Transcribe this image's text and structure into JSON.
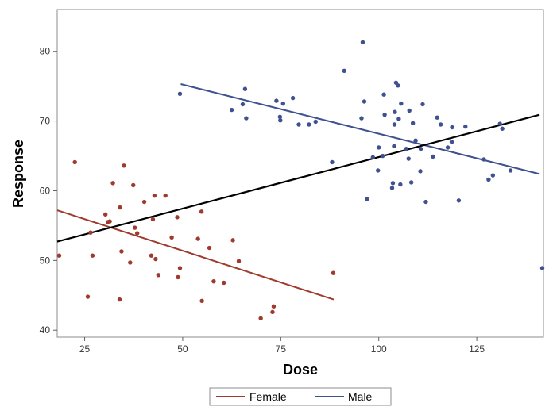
{
  "chart_data": {
    "type": "scatter",
    "xlabel": "Dose",
    "ylabel": "Response",
    "xlim": [
      18,
      142
    ],
    "ylim": [
      39,
      86
    ],
    "x_ticks": [
      25,
      50,
      75,
      100,
      125
    ],
    "y_ticks": [
      40,
      50,
      60,
      70,
      80
    ],
    "grid": false,
    "legend_position": "bottom-center",
    "overall_fit": {
      "color": "#000000",
      "x": [
        18,
        141
      ],
      "y": [
        52.7,
        70.9
      ]
    },
    "series": [
      {
        "name": "Female",
        "color": "#9e3b2e",
        "points": [
          [
            18.5,
            50.7
          ],
          [
            22.5,
            64.1
          ],
          [
            25.8,
            44.8
          ],
          [
            26.5,
            54.0
          ],
          [
            27.0,
            50.7
          ],
          [
            30.3,
            56.6
          ],
          [
            30.9,
            55.5
          ],
          [
            31.4,
            55.6
          ],
          [
            32.2,
            61.1
          ],
          [
            33.9,
            44.4
          ],
          [
            34.0,
            57.6
          ],
          [
            34.4,
            51.3
          ],
          [
            35.0,
            63.6
          ],
          [
            36.6,
            49.7
          ],
          [
            37.4,
            60.8
          ],
          [
            37.8,
            54.7
          ],
          [
            38.4,
            53.9
          ],
          [
            40.2,
            58.4
          ],
          [
            42.0,
            50.7
          ],
          [
            42.4,
            55.9
          ],
          [
            42.8,
            59.3
          ],
          [
            43.1,
            50.2
          ],
          [
            43.8,
            47.9
          ],
          [
            45.6,
            59.3
          ],
          [
            47.2,
            53.3
          ],
          [
            48.6,
            56.2
          ],
          [
            48.8,
            47.6
          ],
          [
            49.3,
            48.9
          ],
          [
            53.9,
            53.1
          ],
          [
            54.8,
            57.0
          ],
          [
            54.9,
            44.2
          ],
          [
            56.8,
            51.8
          ],
          [
            57.9,
            47.0
          ],
          [
            60.5,
            46.8
          ],
          [
            62.8,
            52.9
          ],
          [
            64.3,
            49.9
          ],
          [
            69.9,
            41.7
          ],
          [
            72.9,
            42.6
          ],
          [
            73.2,
            43.4
          ],
          [
            88.4,
            48.2
          ]
        ],
        "fit": {
          "x": [
            18,
            88.5
          ],
          "y": [
            57.2,
            44.4
          ]
        }
      },
      {
        "name": "Male",
        "color": "#3f518e",
        "points": [
          [
            49.3,
            73.9
          ],
          [
            62.5,
            71.6
          ],
          [
            65.3,
            72.4
          ],
          [
            65.9,
            74.6
          ],
          [
            66.2,
            70.4
          ],
          [
            73.9,
            72.9
          ],
          [
            74.8,
            70.6
          ],
          [
            74.9,
            70.1
          ],
          [
            75.6,
            72.5
          ],
          [
            78.1,
            73.3
          ],
          [
            79.6,
            69.5
          ],
          [
            82.2,
            69.5
          ],
          [
            83.9,
            69.9
          ],
          [
            88.1,
            64.1
          ],
          [
            91.2,
            77.2
          ],
          [
            95.6,
            70.4
          ],
          [
            95.9,
            81.3
          ],
          [
            96.3,
            72.8
          ],
          [
            97.0,
            58.8
          ],
          [
            98.5,
            64.8
          ],
          [
            99.8,
            62.9
          ],
          [
            100.0,
            66.2
          ],
          [
            101.0,
            65.0
          ],
          [
            101.3,
            73.8
          ],
          [
            101.5,
            70.9
          ],
          [
            103.4,
            60.4
          ],
          [
            103.6,
            61.1
          ],
          [
            103.9,
            66.4
          ],
          [
            104.0,
            69.5
          ],
          [
            104.1,
            71.3
          ],
          [
            104.4,
            75.5
          ],
          [
            104.9,
            75.1
          ],
          [
            105.1,
            70.3
          ],
          [
            105.5,
            60.9
          ],
          [
            105.7,
            72.5
          ],
          [
            107.0,
            66.0
          ],
          [
            107.6,
            64.6
          ],
          [
            107.8,
            71.5
          ],
          [
            108.3,
            61.2
          ],
          [
            108.7,
            69.7
          ],
          [
            109.4,
            67.2
          ],
          [
            110.6,
            62.8
          ],
          [
            110.7,
            66.0
          ],
          [
            111.2,
            72.4
          ],
          [
            112.0,
            58.4
          ],
          [
            113.8,
            64.9
          ],
          [
            114.9,
            70.5
          ],
          [
            115.8,
            69.5
          ],
          [
            117.6,
            66.2
          ],
          [
            118.6,
            67.0
          ],
          [
            118.7,
            69.1
          ],
          [
            120.4,
            58.6
          ],
          [
            122.1,
            69.2
          ],
          [
            126.8,
            64.5
          ],
          [
            128.0,
            61.6
          ],
          [
            129.1,
            62.2
          ],
          [
            130.9,
            69.6
          ],
          [
            131.5,
            68.9
          ],
          [
            133.6,
            62.9
          ],
          [
            141.7,
            48.9
          ]
        ],
        "fit": {
          "x": [
            49.5,
            141
          ],
          "y": [
            75.3,
            62.4
          ]
        }
      }
    ]
  }
}
